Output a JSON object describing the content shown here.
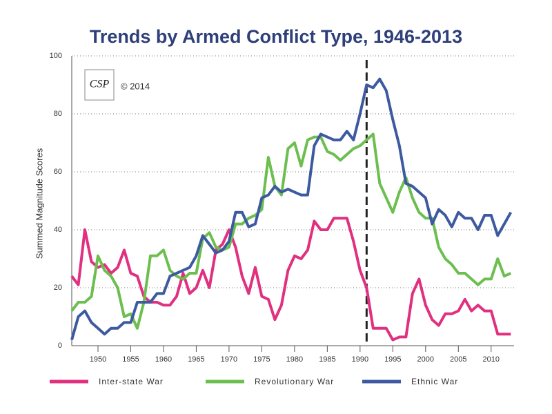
{
  "chart_data": {
    "type": "line",
    "title": "Trends by Armed Conflict Type, 1946-2013",
    "y_label": "Summed Magnitude Scores",
    "annotation": "© 2014",
    "logo_text": "CSP",
    "reference_line_x": 1991,
    "x": [
      1946,
      1947,
      1948,
      1949,
      1950,
      1951,
      1952,
      1953,
      1954,
      1955,
      1956,
      1957,
      1958,
      1959,
      1960,
      1961,
      1962,
      1963,
      1964,
      1965,
      1966,
      1967,
      1968,
      1969,
      1970,
      1971,
      1972,
      1973,
      1974,
      1975,
      1976,
      1977,
      1978,
      1979,
      1980,
      1981,
      1982,
      1983,
      1984,
      1985,
      1986,
      1987,
      1988,
      1989,
      1990,
      1991,
      1992,
      1993,
      1994,
      1995,
      1996,
      1997,
      1998,
      1999,
      2000,
      2001,
      2002,
      2003,
      2004,
      2005,
      2006,
      2007,
      2008,
      2009,
      2010,
      2011,
      2012,
      2013
    ],
    "series": [
      {
        "name": "Inter-state War",
        "color": "#e0307f",
        "values": [
          24,
          21,
          40,
          29,
          27,
          28,
          25,
          27,
          33,
          25,
          24,
          17,
          15,
          15,
          14,
          14,
          17,
          25,
          18,
          20,
          26,
          20,
          33,
          35,
          40,
          34,
          24,
          18,
          27,
          17,
          16,
          9,
          14,
          26,
          31,
          30,
          33,
          43,
          40,
          40,
          44,
          44,
          44,
          36,
          26,
          20,
          6,
          6,
          6,
          2,
          3,
          3,
          18,
          23,
          14,
          9,
          7,
          11,
          11,
          12,
          16,
          12,
          14,
          12,
          12,
          4,
          4,
          4
        ]
      },
      {
        "name": "Revolutionary War",
        "color": "#6cbf4f",
        "values": [
          12,
          15,
          15,
          17,
          31,
          26,
          24,
          20,
          10,
          11,
          6,
          15,
          31,
          31,
          33,
          26,
          24,
          23,
          25,
          25,
          37,
          39,
          34,
          33,
          34,
          42,
          42,
          44,
          45,
          47,
          65,
          55,
          52,
          68,
          70,
          62,
          71,
          72,
          72,
          67,
          66,
          64,
          66,
          68,
          69,
          71,
          73,
          56,
          51,
          46,
          53,
          58,
          51,
          46,
          44,
          44,
          34,
          30,
          28,
          25,
          25,
          23,
          21,
          23,
          23,
          30,
          24,
          25
        ]
      },
      {
        "name": "Ethnic War",
        "color": "#3d5aa0",
        "values": [
          2,
          10,
          12,
          8,
          6,
          4,
          6,
          6,
          8,
          8,
          15,
          15,
          15,
          18,
          18,
          24,
          25,
          26,
          27,
          31,
          38,
          35,
          32,
          33,
          36,
          46,
          46,
          41,
          42,
          51,
          52,
          55,
          53,
          54,
          53,
          52,
          52,
          69,
          73,
          72,
          71,
          71,
          74,
          71,
          80,
          90,
          89,
          92,
          88,
          78,
          69,
          56,
          55,
          53,
          51,
          42,
          47,
          45,
          41,
          46,
          44,
          44,
          40,
          45,
          45,
          38,
          42,
          46
        ]
      }
    ],
    "xlim": [
      1946,
      2013.5
    ],
    "xticks": [
      1950,
      1955,
      1960,
      1965,
      1970,
      1975,
      1980,
      1985,
      1990,
      1995,
      2000,
      2005,
      2010
    ],
    "ylim": [
      0,
      100
    ],
    "yticks": [
      0,
      20,
      40,
      60,
      80,
      100
    ],
    "grid": true
  }
}
